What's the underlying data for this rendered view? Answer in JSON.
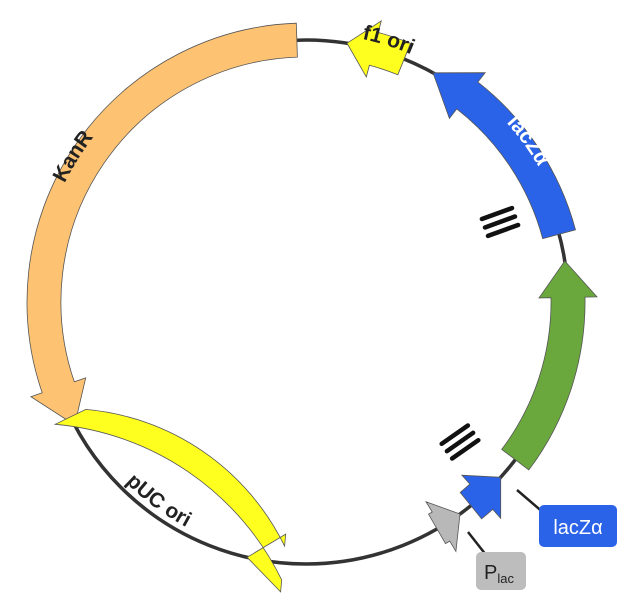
{
  "features": [
    {
      "id": "kanr",
      "label": "KanR",
      "color": "#FDC272",
      "text_color": "#222222"
    },
    {
      "id": "f1ori",
      "label": "f1 ori",
      "color": "#FFFF1F",
      "text_color": "#222222"
    },
    {
      "id": "lacza_main",
      "label": "lacZα",
      "color": "#2B63E8",
      "text_color": "#FFFFFF"
    },
    {
      "id": "insert",
      "label": "",
      "color": "#6AA83E",
      "text_color": "#222222"
    },
    {
      "id": "lacza_small",
      "label": "",
      "color": "#2B63E8",
      "text_color": "#FFFFFF"
    },
    {
      "id": "plac_arrow",
      "label": "",
      "color": "#B8B8B8",
      "text_color": "#222222"
    },
    {
      "id": "puc",
      "label": "pUC ori",
      "color": "#FFFF1F",
      "text_color": "#222222"
    }
  ],
  "callouts": {
    "lacza": {
      "label": "lacZα",
      "color": "#2B63E8"
    },
    "plac": {
      "label_main": "P",
      "label_sub": "lac",
      "color": "#BDBDBD"
    }
  },
  "backbone_color": "#333333"
}
